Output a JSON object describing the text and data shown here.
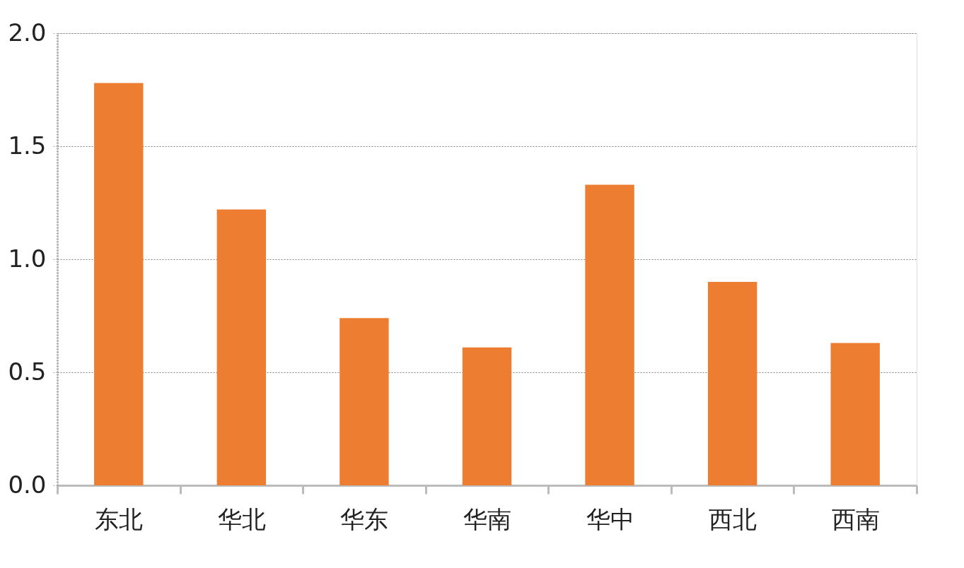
{
  "chart_data": {
    "type": "bar",
    "categories": [
      "东北",
      "华北",
      "华东",
      "华南",
      "华中",
      "西北",
      "西南"
    ],
    "values": [
      1.78,
      1.22,
      0.74,
      0.61,
      1.33,
      0.9,
      0.63
    ],
    "color": "#ed7d31",
    "ylim": [
      0,
      2.0
    ],
    "yticks": [
      {
        "value": 0,
        "label": "0.0"
      },
      0.5,
      {
        "value": 1,
        "label": "1.0"
      },
      1.5,
      {
        "value": 2,
        "label": "2.0"
      }
    ],
    "grid": "y"
  }
}
